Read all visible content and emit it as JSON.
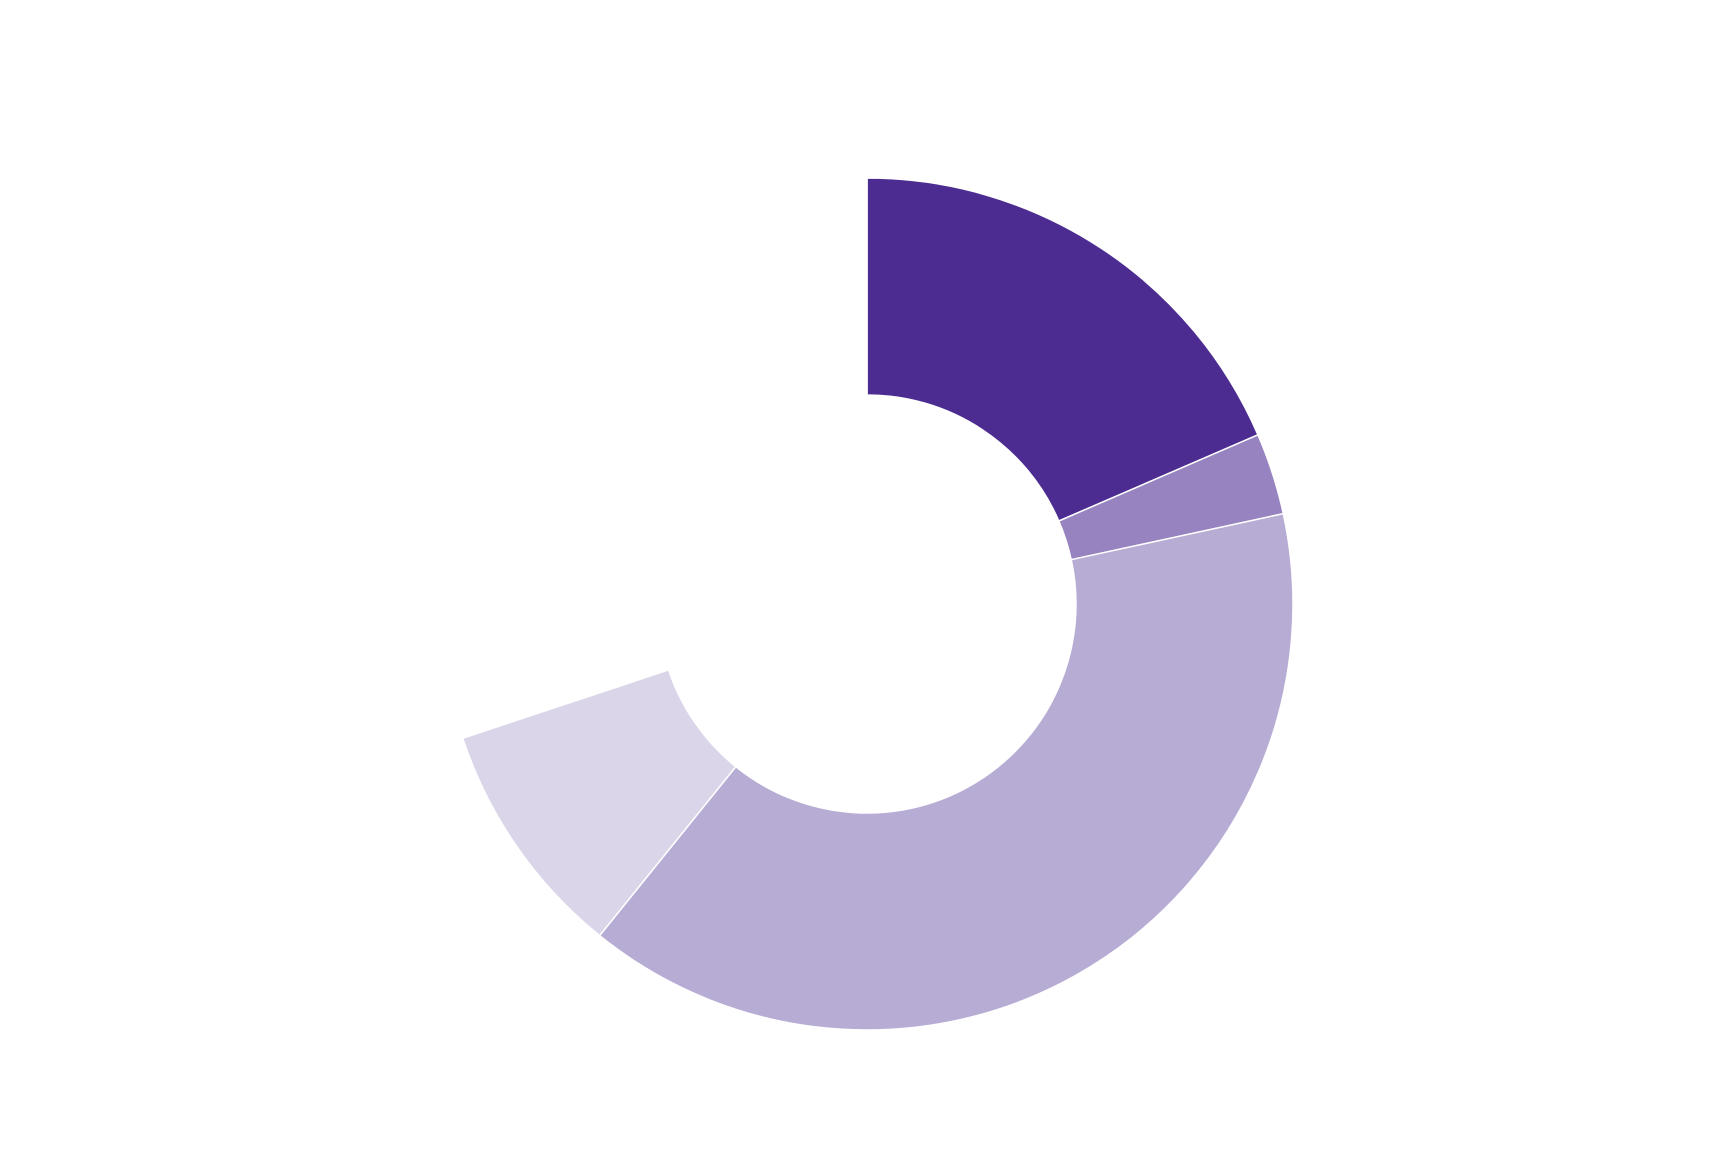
{
  "chart_data": {
    "type": "pie",
    "variant": "donut",
    "title": "",
    "legend": "none",
    "data_labels": "none",
    "start_angle_deg": 0,
    "direction": "clockwise",
    "slices": [
      {
        "value": 18.5,
        "color": "#4d2c92"
      },
      {
        "value": 3.1,
        "color": "#9683bf"
      },
      {
        "value": 39.2,
        "color": "#b7acd4"
      },
      {
        "value": 9.1,
        "color": "#dbd5e9"
      },
      {
        "value": 30.1,
        "color": "#ffffff"
      }
    ]
  }
}
